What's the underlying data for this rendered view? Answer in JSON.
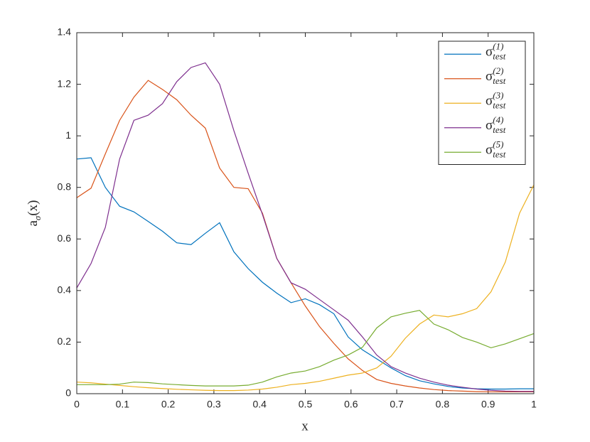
{
  "chart_data": {
    "type": "line",
    "x_label": "x",
    "y_label": "a_{σ}(x)",
    "x": [
      0,
      0.03125,
      0.0625,
      0.09375,
      0.125,
      0.15625,
      0.1875,
      0.21875,
      0.25,
      0.28125,
      0.3125,
      0.34375,
      0.375,
      0.40625,
      0.4375,
      0.46875,
      0.5,
      0.53125,
      0.5625,
      0.59375,
      0.625,
      0.65625,
      0.6875,
      0.71875,
      0.75,
      0.78125,
      0.8125,
      0.84375,
      0.875,
      0.90625,
      0.9375,
      0.96875,
      1
    ],
    "series": [
      {
        "name": "σ_{test}^{(1)}",
        "color": "#0072BD",
        "values": [
          0.91,
          0.915,
          0.8,
          0.727,
          0.705,
          0.668,
          0.63,
          0.585,
          0.578,
          0.622,
          0.663,
          0.55,
          0.485,
          0.432,
          0.39,
          0.353,
          0.368,
          0.345,
          0.31,
          0.22,
          0.17,
          0.135,
          0.1,
          0.07,
          0.05,
          0.038,
          0.028,
          0.022,
          0.019,
          0.018,
          0.018,
          0.019,
          0.019
        ]
      },
      {
        "name": "σ_{test}^{(2)}",
        "color": "#D95319",
        "values": [
          0.76,
          0.797,
          0.93,
          1.06,
          1.15,
          1.215,
          1.18,
          1.14,
          1.08,
          1.03,
          0.875,
          0.8,
          0.795,
          0.7,
          0.525,
          0.43,
          0.34,
          0.26,
          0.195,
          0.135,
          0.09,
          0.055,
          0.04,
          0.03,
          0.022,
          0.016,
          0.012,
          0.01,
          0.008,
          0.007,
          0.007,
          0.007,
          0.007
        ]
      },
      {
        "name": "σ_{test}^{(3)}",
        "color": "#EDB120",
        "values": [
          0.045,
          0.042,
          0.037,
          0.032,
          0.027,
          0.023,
          0.02,
          0.017,
          0.015,
          0.013,
          0.012,
          0.012,
          0.014,
          0.018,
          0.025,
          0.035,
          0.04,
          0.048,
          0.06,
          0.072,
          0.08,
          0.1,
          0.145,
          0.215,
          0.27,
          0.305,
          0.298,
          0.31,
          0.33,
          0.395,
          0.51,
          0.7,
          0.81
        ]
      },
      {
        "name": "σ_{test}^{(4)}",
        "color": "#7E2F8E",
        "values": [
          0.41,
          0.505,
          0.645,
          0.91,
          1.06,
          1.08,
          1.125,
          1.21,
          1.265,
          1.283,
          1.2,
          1.02,
          0.855,
          0.695,
          0.525,
          0.43,
          0.405,
          0.365,
          0.325,
          0.285,
          0.22,
          0.15,
          0.105,
          0.08,
          0.06,
          0.045,
          0.033,
          0.025,
          0.018,
          0.013,
          0.01,
          0.009,
          0.009
        ]
      },
      {
        "name": "σ_{test}^{(5)}",
        "color": "#77AC30",
        "values": [
          0.035,
          0.035,
          0.035,
          0.037,
          0.045,
          0.043,
          0.038,
          0.035,
          0.032,
          0.03,
          0.03,
          0.03,
          0.033,
          0.045,
          0.065,
          0.08,
          0.088,
          0.105,
          0.13,
          0.15,
          0.18,
          0.255,
          0.298,
          0.312,
          0.323,
          0.27,
          0.248,
          0.218,
          0.2,
          0.178,
          0.193,
          0.213,
          0.233
        ]
      }
    ],
    "xlim": [
      0,
      1
    ],
    "ylim": [
      0,
      1.4
    ],
    "xticks": [
      0,
      0.1,
      0.2,
      0.3,
      0.4,
      0.5,
      0.6,
      0.7,
      0.8,
      0.9,
      1
    ],
    "yticks": [
      0,
      0.2,
      0.4,
      0.6,
      0.8,
      1,
      1.2,
      1.4
    ],
    "grid": false,
    "legend": "top-right"
  }
}
